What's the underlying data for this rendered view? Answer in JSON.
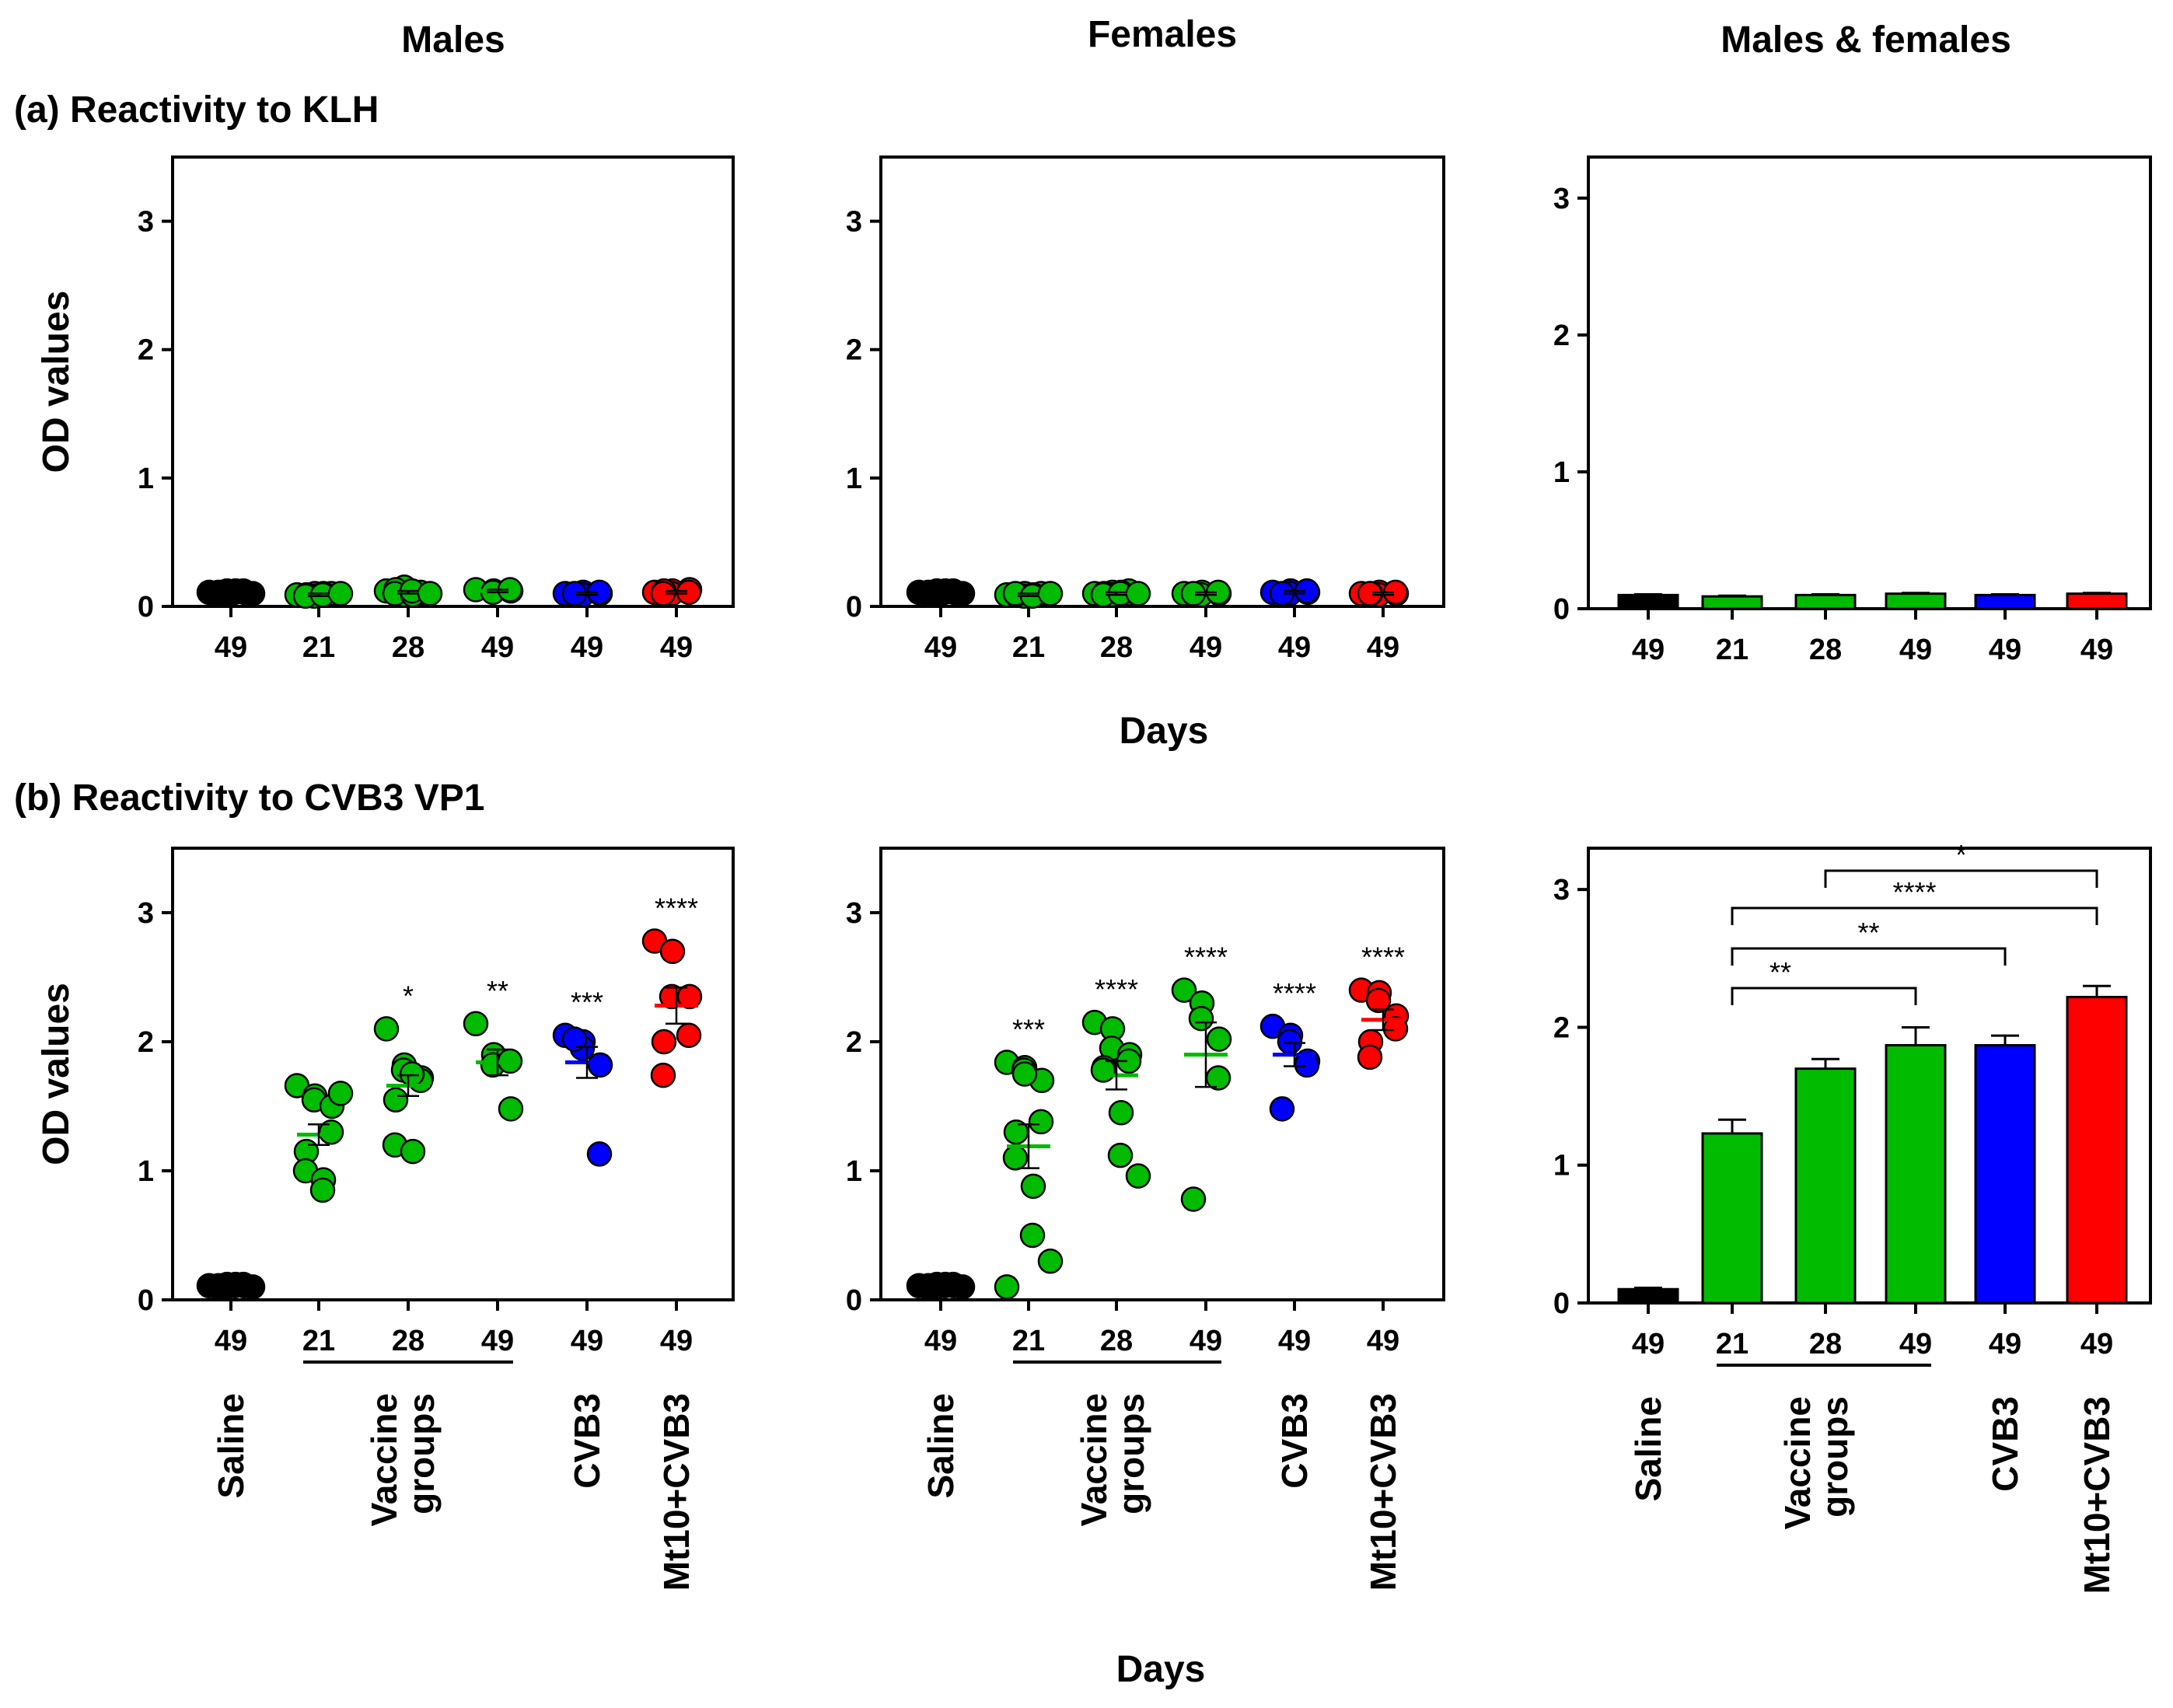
{
  "column_titles": [
    "Males",
    "Females",
    "Males & females"
  ],
  "row_titles": [
    "(a) Reactivity to KLH",
    "(b) Reactivity to CVB3 VP1"
  ],
  "ylabel": "OD values",
  "days_label": "Days",
  "group_labels": {
    "saline": "Saline",
    "vaccine_line1": "Vaccine",
    "vaccine_line2": "groups",
    "cvb3": "CVB3",
    "mt10": "Mt10+CVB3"
  },
  "colors": {
    "saline": "#000000",
    "vaccine": "#00bb00",
    "cvb3": "#0000ff",
    "mt10": "#ff0000"
  },
  "chart_data": [
    {
      "id": "a_males",
      "type": "scatter",
      "title": "Males",
      "row": "(a) Reactivity to KLH",
      "ylabel": "OD values",
      "ylim": [
        0,
        3.5
      ],
      "yticks": [
        0,
        1,
        2,
        3
      ],
      "categories": [
        "49",
        "21",
        "28",
        "49",
        "49",
        "49"
      ],
      "groups": [
        "saline",
        "vaccine",
        "vaccine",
        "vaccine",
        "cvb3",
        "mt10"
      ],
      "means": [
        0.11,
        0.09,
        0.11,
        0.12,
        0.1,
        0.11
      ],
      "sems": [
        0.01,
        0.01,
        0.01,
        0.01,
        0.01,
        0.01
      ],
      "points": [
        [
          0.11,
          0.12,
          0.1,
          0.11,
          0.12,
          0.11,
          0.1,
          0.12,
          0.11,
          0.1
        ],
        [
          0.09,
          0.1,
          0.08,
          0.09,
          0.1,
          0.09,
          0.08,
          0.1,
          0.09,
          0.1
        ],
        [
          0.12,
          0.15,
          0.09,
          0.1,
          0.11,
          0.13,
          0.1,
          0.09,
          0.12,
          0.1
        ],
        [
          0.13,
          0.12,
          0.11,
          0.12,
          0.13
        ],
        [
          0.1,
          0.11,
          0.09,
          0.1,
          0.11,
          0.1
        ],
        [
          0.11,
          0.12,
          0.1,
          0.13,
          0.11,
          0.12,
          0.1
        ]
      ],
      "annotations": []
    },
    {
      "id": "a_females",
      "type": "scatter",
      "title": "Females",
      "row": "(a) Reactivity to KLH",
      "ylabel": "",
      "ylim": [
        0,
        3.5
      ],
      "yticks": [
        0,
        1,
        2,
        3
      ],
      "categories": [
        "49",
        "21",
        "28",
        "49",
        "49",
        "49"
      ],
      "groups": [
        "saline",
        "vaccine",
        "vaccine",
        "vaccine",
        "cvb3",
        "mt10"
      ],
      "means": [
        0.11,
        0.09,
        0.1,
        0.1,
        0.11,
        0.1
      ],
      "sems": [
        0.01,
        0.01,
        0.01,
        0.01,
        0.01,
        0.01
      ],
      "points": [
        [
          0.11,
          0.12,
          0.1,
          0.11,
          0.12,
          0.11,
          0.1,
          0.12,
          0.11,
          0.1
        ],
        [
          0.09,
          0.1,
          0.08,
          0.09,
          0.1,
          0.09,
          0.1,
          0.09,
          0.08,
          0.1
        ],
        [
          0.1,
          0.11,
          0.09,
          0.1,
          0.12,
          0.1,
          0.09,
          0.11,
          0.1,
          0.1
        ],
        [
          0.1,
          0.11,
          0.09,
          0.1,
          0.11,
          0.1
        ],
        [
          0.11,
          0.12,
          0.1,
          0.11,
          0.12,
          0.1
        ],
        [
          0.1,
          0.11,
          0.09,
          0.1,
          0.11,
          0.1,
          0.1
        ]
      ],
      "annotations": []
    },
    {
      "id": "a_both",
      "type": "bar",
      "title": "Males & females",
      "row": "(a) Reactivity to KLH",
      "ylabel": "",
      "ylim": [
        0,
        3.3
      ],
      "yticks": [
        0,
        1,
        2,
        3
      ],
      "categories": [
        "49",
        "21",
        "28",
        "49",
        "49",
        "49"
      ],
      "groups": [
        "saline",
        "vaccine",
        "vaccine",
        "vaccine",
        "cvb3",
        "mt10"
      ],
      "values": [
        0.1,
        0.09,
        0.1,
        0.11,
        0.1,
        0.11
      ],
      "sems": [
        0.005,
        0.005,
        0.005,
        0.005,
        0.005,
        0.005
      ],
      "brackets": []
    },
    {
      "id": "b_males",
      "type": "scatter",
      "title": "Males",
      "row": "(b) Reactivity to CVB3 VP1",
      "ylabel": "OD values",
      "ylim": [
        0,
        3.5
      ],
      "yticks": [
        0,
        1,
        2,
        3
      ],
      "categories": [
        "49",
        "21",
        "28",
        "49",
        "49",
        "49"
      ],
      "groups": [
        "saline",
        "vaccine",
        "vaccine",
        "vaccine",
        "cvb3",
        "mt10"
      ],
      "means": [
        0.11,
        1.28,
        1.66,
        1.84,
        1.84,
        2.28
      ],
      "sems": [
        0.01,
        0.08,
        0.08,
        0.1,
        0.12,
        0.14
      ],
      "points": [
        [
          0.11,
          0.12,
          0.1,
          0.11,
          0.12,
          0.11,
          0.1,
          0.12,
          0.11,
          0.1
        ],
        [
          1.66,
          1.58,
          1.55,
          1.5,
          1.3,
          1.15,
          1.0,
          0.93,
          0.85,
          1.6
        ],
        [
          2.1,
          1.82,
          1.78,
          1.72,
          1.7,
          1.55,
          1.2,
          1.15,
          1.75
        ],
        [
          2.14,
          1.9,
          1.82,
          1.48,
          1.85
        ],
        [
          2.05,
          2.0,
          1.95,
          1.82,
          1.13,
          2.02
        ],
        [
          2.78,
          2.7,
          2.35,
          2.35,
          2.05,
          2.0,
          1.74
        ]
      ],
      "annotations": [
        "",
        "",
        "*",
        "**",
        "***",
        "****"
      ]
    },
    {
      "id": "b_females",
      "type": "scatter",
      "title": "Females",
      "row": "(b) Reactivity to CVB3 VP1",
      "ylabel": "",
      "ylim": [
        0,
        3.5
      ],
      "yticks": [
        0,
        1,
        2,
        3
      ],
      "categories": [
        "49",
        "21",
        "28",
        "49",
        "49",
        "49"
      ],
      "groups": [
        "saline",
        "vaccine",
        "vaccine",
        "vaccine",
        "cvb3",
        "mt10"
      ],
      "means": [
        0.11,
        1.19,
        1.74,
        1.9,
        1.9,
        2.17
      ],
      "sems": [
        0.01,
        0.17,
        0.11,
        0.25,
        0.09,
        0.08
      ],
      "points": [
        [
          0.11,
          0.12,
          0.1,
          0.11,
          0.12,
          0.11,
          0.1,
          0.12,
          0.11,
          0.1
        ],
        [
          1.84,
          1.8,
          1.78,
          1.7,
          1.38,
          1.3,
          1.1,
          0.88,
          0.5,
          0.3,
          0.1,
          1.75
        ],
        [
          2.15,
          2.1,
          1.95,
          1.9,
          1.85,
          1.8,
          1.78,
          1.45,
          1.12,
          0.96
        ],
        [
          2.4,
          2.3,
          2.18,
          2.02,
          1.72,
          0.78
        ],
        [
          2.12,
          2.05,
          2.0,
          1.85,
          1.82,
          1.48
        ],
        [
          2.4,
          2.38,
          2.32,
          2.2,
          2.1,
          2.0,
          1.88
        ]
      ],
      "annotations": [
        "",
        "***",
        "****",
        "****",
        "****",
        "****"
      ]
    },
    {
      "id": "b_both",
      "type": "bar",
      "title": "Males & females",
      "row": "(b) Reactivity to CVB3 VP1",
      "ylabel": "",
      "ylim": [
        0,
        3.3
      ],
      "yticks": [
        0,
        1,
        2,
        3
      ],
      "categories": [
        "49",
        "21",
        "28",
        "49",
        "49",
        "49"
      ],
      "groups": [
        "saline",
        "vaccine",
        "vaccine",
        "vaccine",
        "cvb3",
        "mt10"
      ],
      "values": [
        0.1,
        1.23,
        1.7,
        1.87,
        1.87,
        2.22
      ],
      "sems": [
        0.01,
        0.1,
        0.07,
        0.13,
        0.07,
        0.08
      ],
      "brackets": [
        {
          "from": 1,
          "to": 3,
          "label": "**"
        },
        {
          "from": 1,
          "to": 4,
          "label": "**"
        },
        {
          "from": 1,
          "to": 5,
          "label": "****"
        },
        {
          "from": 2,
          "to": 5,
          "label": "*"
        }
      ]
    }
  ]
}
